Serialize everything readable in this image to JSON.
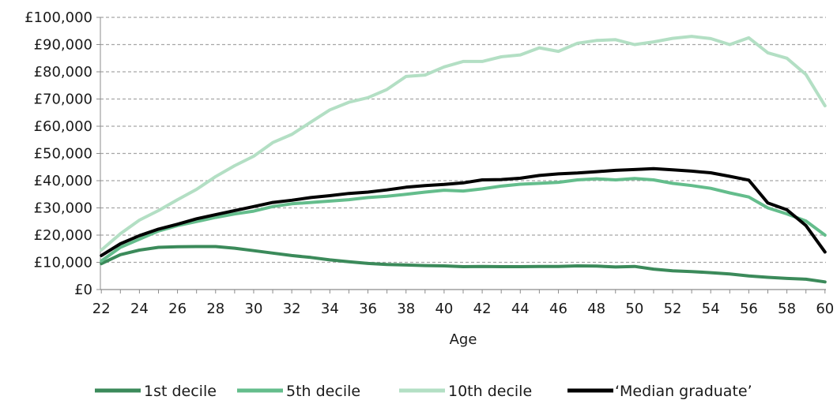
{
  "chart_data": {
    "type": "line",
    "title": "",
    "xlabel": "Age",
    "ylabel": "",
    "x": [
      22,
      23,
      24,
      25,
      26,
      27,
      28,
      29,
      30,
      31,
      32,
      33,
      34,
      35,
      36,
      37,
      38,
      39,
      40,
      41,
      42,
      43,
      44,
      45,
      46,
      47,
      48,
      49,
      50,
      51,
      52,
      53,
      54,
      55,
      56,
      57,
      58,
      59,
      60
    ],
    "x_ticks": [
      22,
      24,
      26,
      28,
      30,
      32,
      34,
      36,
      38,
      40,
      42,
      44,
      46,
      48,
      50,
      52,
      54,
      56,
      58,
      60
    ],
    "xlim": [
      21.95,
      60.05
    ],
    "ylim": [
      0,
      100000
    ],
    "y_ticks": [
      0,
      10000,
      20000,
      30000,
      40000,
      50000,
      60000,
      70000,
      80000,
      90000,
      100000
    ],
    "y_tick_labels": [
      "£0",
      "£10,000",
      "£20,000",
      "£30,000",
      "£40,000",
      "£50,000",
      "£60,000",
      "£70,000",
      "£80,000",
      "£90,000",
      "£100,000"
    ],
    "grid": "horizontal-dashed",
    "legend_position": "bottom",
    "series": [
      {
        "name": "1st decile",
        "color": "#3b8a5a",
        "values": [
          9500,
          12800,
          14500,
          15500,
          15700,
          15800,
          15800,
          15200,
          14300,
          13400,
          12500,
          11800,
          10900,
          10200,
          9600,
          9200,
          9000,
          8800,
          8700,
          8400,
          8500,
          8400,
          8400,
          8500,
          8500,
          8700,
          8600,
          8300,
          8500,
          7500,
          6900,
          6600,
          6200,
          5700,
          5000,
          4500,
          4100,
          3800,
          2800
        ]
      },
      {
        "name": "5th decile",
        "color": "#64bd8c",
        "values": [
          10500,
          15500,
          18500,
          21500,
          23500,
          25000,
          26500,
          27800,
          28800,
          30500,
          31500,
          32000,
          32500,
          33000,
          33800,
          34300,
          35000,
          35800,
          36500,
          36200,
          37000,
          38000,
          38700,
          39000,
          39400,
          40300,
          40700,
          40300,
          40800,
          40300,
          39000,
          38200,
          37200,
          35500,
          34000,
          30000,
          27800,
          25200,
          20000
        ]
      },
      {
        "name": "10th decile",
        "color": "#b3dfc4",
        "values": [
          14500,
          20500,
          25500,
          29000,
          33000,
          36800,
          41500,
          45500,
          49000,
          54000,
          57000,
          61500,
          66000,
          68800,
          70500,
          73500,
          78300,
          78800,
          81800,
          83800,
          83800,
          85500,
          86200,
          88800,
          87500,
          90500,
          91500,
          91800,
          90000,
          91000,
          92300,
          93000,
          92200,
          90000,
          92500,
          87000,
          85000,
          79000,
          67500
        ]
      },
      {
        "name": "‘Median graduate’",
        "color": "#000000",
        "values": [
          12500,
          16800,
          19800,
          22200,
          24000,
          26000,
          27500,
          29000,
          30500,
          32000,
          32800,
          33800,
          34500,
          35300,
          35800,
          36600,
          37600,
          38200,
          38600,
          39200,
          40300,
          40400,
          40900,
          41900,
          42500,
          42800,
          43300,
          43800,
          44100,
          44400,
          44000,
          43500,
          42900,
          41600,
          40200,
          31800,
          29300,
          23500,
          13800
        ]
      }
    ]
  }
}
